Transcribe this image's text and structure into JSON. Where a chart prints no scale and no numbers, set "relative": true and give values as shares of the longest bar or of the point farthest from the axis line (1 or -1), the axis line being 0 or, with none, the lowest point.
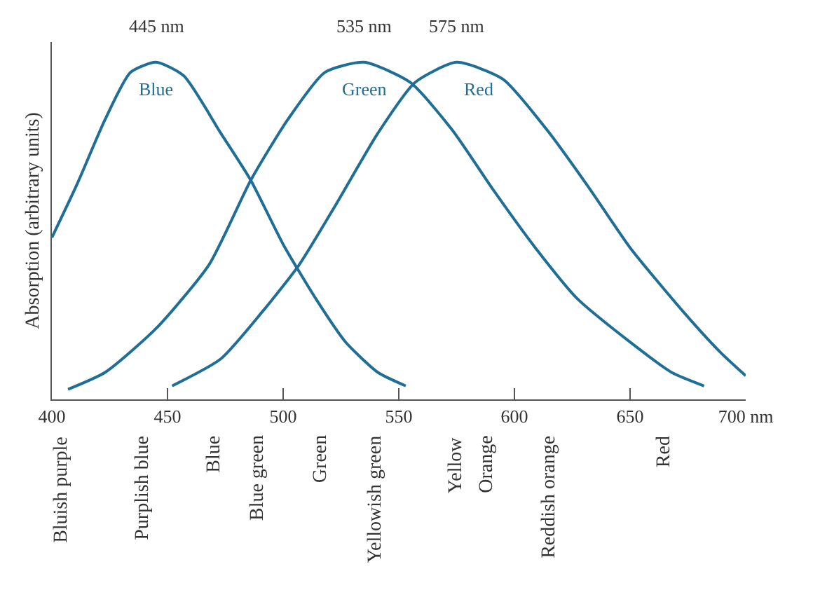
{
  "chart_data": {
    "type": "line",
    "relative": true,
    "ylabel": "Absorption (arbitrary units)",
    "legend": false,
    "marker": "none",
    "line_style": "solid",
    "xlim": [
      400,
      700
    ],
    "xticks": [
      400,
      450,
      500,
      550,
      600,
      650,
      {
        "value": 700,
        "label": "700 nm"
      }
    ],
    "series": [
      {
        "name": "Blue",
        "color": "#1f6e96",
        "x": [
          400,
          411,
          423,
          434,
          445,
          457,
          473,
          486,
          500,
          514,
          527,
          541,
          553
        ],
        "values": [
          0.48,
          0.64,
          0.83,
          0.97,
          1.0,
          0.96,
          0.79,
          0.65,
          0.46,
          0.3,
          0.17,
          0.08,
          0.04
        ]
      },
      {
        "name": "Green",
        "color": "#1f6e96",
        "x": [
          407,
          423,
          445,
          468,
          486,
          502,
          518,
          535,
          555,
          573,
          591,
          609,
          627,
          650,
          668,
          682
        ],
        "values": [
          0.03,
          0.08,
          0.21,
          0.4,
          0.65,
          0.83,
          0.97,
          1.0,
          0.94,
          0.8,
          0.62,
          0.45,
          0.3,
          0.17,
          0.08,
          0.04
        ]
      },
      {
        "name": "Red",
        "color": "#1f6e96",
        "x": [
          452,
          473,
          491,
          507,
          523,
          541,
          557,
          575,
          595,
          614,
          632,
          650,
          673,
          689,
          700
        ],
        "values": [
          0.04,
          0.12,
          0.26,
          0.4,
          0.58,
          0.79,
          0.94,
          1.0,
          0.95,
          0.8,
          0.63,
          0.45,
          0.26,
          0.14,
          0.07
        ]
      }
    ],
    "annotations": [
      {
        "text": "445 nm",
        "x": 445,
        "y": 1.0
      },
      {
        "text": "535 nm",
        "x": 535,
        "y": 1.0
      },
      {
        "text": "575 nm",
        "x": 575,
        "y": 1.0
      },
      "Bluish purple",
      "Purplish blue",
      "Blue",
      "Blue green",
      "Green",
      "Yellowish green",
      "Yellow",
      "Orange",
      "Reddish orange",
      "Red"
    ]
  }
}
